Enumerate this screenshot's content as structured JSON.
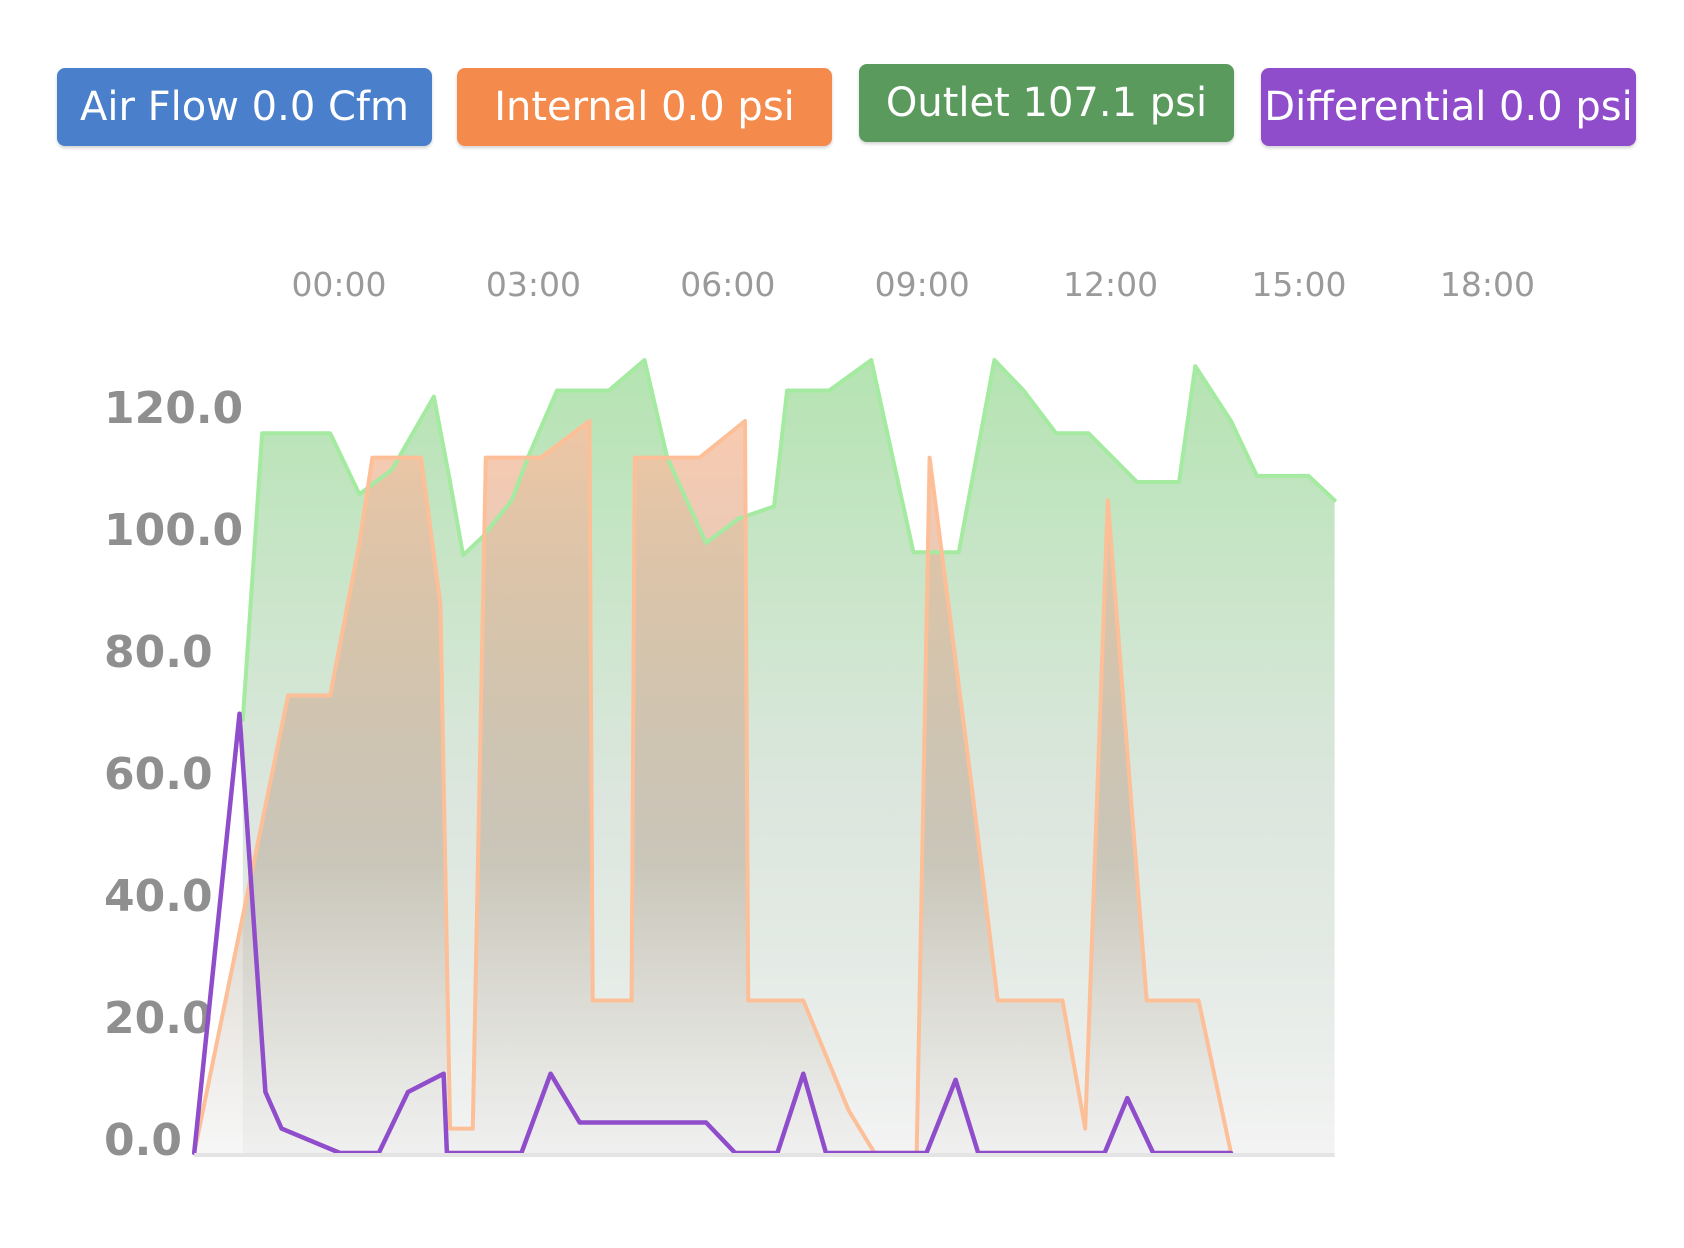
{
  "legend": [
    {
      "label": "Air Flow 0.0 Cfm",
      "color": "#4a7fcb"
    },
    {
      "label": "Internal 0.0 psi",
      "color": "#f48a4c"
    },
    {
      "label": "Outlet 107.1 psi",
      "color": "#5a9a5c"
    },
    {
      "label": "Differential 0.0 psi",
      "color": "#8f4ccb"
    }
  ],
  "chart_data": {
    "type": "area",
    "title": "",
    "xlabel": "",
    "ylabel": "",
    "x_ticks": [
      "00:00",
      "03:00",
      "06:00",
      "09:00",
      "12:00",
      "15:00",
      "18:00"
    ],
    "y_ticks": [
      "0.0",
      "20.0",
      "40.0",
      "60.0",
      "80.0",
      "100.0",
      "120.0"
    ],
    "ylim": [
      0,
      123
    ],
    "xlim": [
      -0.8,
      19.6
    ],
    "grid": false,
    "legend_position": "top",
    "series": [
      {
        "name": "Outlet",
        "color": "#a4eaa0",
        "fill_top": "#9bdb97",
        "values": [
          [
            -0.05,
            71
          ],
          [
            0.25,
            118
          ],
          [
            1.0,
            118
          ],
          [
            1.3,
            118
          ],
          [
            1.75,
            108
          ],
          [
            2.25,
            112
          ],
          [
            2.9,
            124
          ],
          [
            3.15,
            110
          ],
          [
            3.35,
            98
          ],
          [
            3.65,
            101
          ],
          [
            4.1,
            107
          ],
          [
            4.35,
            114
          ],
          [
            4.8,
            125
          ],
          [
            5.0,
            125
          ],
          [
            5.6,
            125
          ],
          [
            6.15,
            130
          ],
          [
            6.5,
            114
          ],
          [
            7.1,
            100
          ],
          [
            7.6,
            104
          ],
          [
            8.15,
            106
          ],
          [
            8.35,
            125
          ],
          [
            9.0,
            125
          ],
          [
            9.65,
            130
          ],
          [
            10.3,
            98.5
          ],
          [
            11.0,
            98.5
          ],
          [
            11.55,
            130
          ],
          [
            12.0,
            125
          ],
          [
            12.5,
            118
          ],
          [
            13.0,
            118
          ],
          [
            13.75,
            110
          ],
          [
            14.4,
            110
          ],
          [
            14.65,
            129
          ],
          [
            15.2,
            120
          ],
          [
            15.6,
            111
          ],
          [
            16.4,
            111
          ],
          [
            16.8,
            107
          ]
        ]
      },
      {
        "name": "Internal",
        "color": "#fdbf98",
        "fill_top": "#f8c1a2",
        "values": [
          [
            -0.8,
            0
          ],
          [
            0.65,
            75
          ],
          [
            1.3,
            75
          ],
          [
            1.75,
            100
          ],
          [
            1.95,
            114
          ],
          [
            2.7,
            114
          ],
          [
            3.0,
            90
          ],
          [
            3.15,
            4
          ],
          [
            3.5,
            4
          ],
          [
            3.7,
            114
          ],
          [
            4.55,
            114
          ],
          [
            5.3,
            120
          ],
          [
            5.35,
            25
          ],
          [
            5.95,
            25
          ],
          [
            6.0,
            114
          ],
          [
            7.0,
            114
          ],
          [
            7.7,
            120
          ],
          [
            7.75,
            25
          ],
          [
            8.6,
            25
          ],
          [
            9.3,
            7
          ],
          [
            9.7,
            0
          ],
          [
            10.35,
            0
          ],
          [
            10.55,
            114
          ],
          [
            11.2,
            60
          ],
          [
            11.6,
            25
          ],
          [
            12.6,
            25
          ],
          [
            12.95,
            4
          ],
          [
            13.3,
            107
          ],
          [
            13.9,
            25
          ],
          [
            14.7,
            25
          ],
          [
            15.2,
            0
          ]
        ]
      },
      {
        "name": "Differential",
        "color": "#8f4ccb",
        "values": [
          [
            -0.8,
            0
          ],
          [
            -0.1,
            72
          ],
          [
            0.3,
            10
          ],
          [
            0.55,
            4
          ],
          [
            1.45,
            0
          ],
          [
            2.05,
            0
          ],
          [
            2.5,
            10
          ],
          [
            3.05,
            13
          ],
          [
            3.1,
            0
          ],
          [
            4.25,
            0
          ],
          [
            4.7,
            13
          ],
          [
            5.15,
            5
          ],
          [
            6.0,
            5
          ],
          [
            7.1,
            5
          ],
          [
            7.55,
            0
          ],
          [
            8.2,
            0
          ],
          [
            8.6,
            13
          ],
          [
            8.95,
            0
          ],
          [
            10.5,
            0
          ],
          [
            10.95,
            12
          ],
          [
            11.3,
            0
          ],
          [
            12.0,
            0
          ],
          [
            13.25,
            0
          ],
          [
            13.6,
            9
          ],
          [
            14.0,
            0
          ],
          [
            15.2,
            0
          ]
        ]
      }
    ]
  }
}
